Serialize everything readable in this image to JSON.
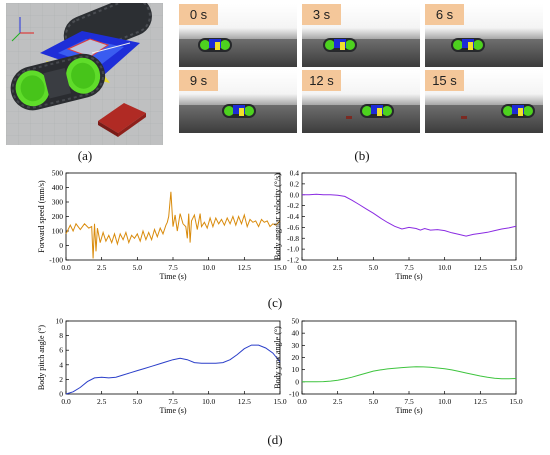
{
  "panel_labels": {
    "a": "(a)",
    "b": "(b)",
    "c": "(c)",
    "d": "(d)"
  },
  "frames": [
    {
      "label": "0 s",
      "robot_pos": 0.22
    },
    {
      "label": "3 s",
      "robot_pos": 0.24
    },
    {
      "label": "6 s",
      "robot_pos": 0.28
    },
    {
      "label": "9 s",
      "robot_pos": 0.42
    },
    {
      "label": "12 s",
      "robot_pos": 0.55
    },
    {
      "label": "15 s",
      "robot_pos": 0.7
    }
  ],
  "chart_data": [
    {
      "type": "line",
      "title": "",
      "xlabel": "Time (s)",
      "ylabel": "Forward speed (mm/s)",
      "xlim": [
        0.0,
        15.0
      ],
      "ylim": [
        -100,
        500
      ],
      "xticks": [
        "0.0",
        "2.5",
        "5.0",
        "7.5",
        "10.0",
        "12.5",
        "15.0"
      ],
      "yticks": [
        "-100",
        "0",
        "100",
        "200",
        "300",
        "400",
        "500"
      ],
      "grid": false,
      "color": "#d98b0c",
      "x": [
        0,
        0.3,
        0.5,
        0.7,
        1,
        1.3,
        1.6,
        1.8,
        1.9,
        2,
        2.1,
        2.2,
        2.4,
        2.6,
        2.8,
        3,
        3.2,
        3.4,
        3.6,
        3.8,
        4,
        4.2,
        4.4,
        4.6,
        4.8,
        5,
        5.2,
        5.4,
        5.6,
        5.8,
        6,
        6.2,
        6.4,
        6.6,
        6.8,
        7,
        7.1,
        7.2,
        7.35,
        7.5,
        7.65,
        7.8,
        8,
        8.2,
        8.4,
        8.5,
        8.6,
        8.7,
        8.8,
        9,
        9.2,
        9.4,
        9.5,
        9.7,
        9.9,
        10.1,
        10.3,
        10.5,
        10.7,
        10.9,
        11.1,
        11.3,
        11.5,
        11.7,
        11.9,
        12.1,
        12.3,
        12.5,
        12.7,
        12.9,
        13.1,
        13.3,
        13.5,
        13.7,
        13.9,
        14.1,
        14.3,
        14.5,
        14.7,
        15
      ],
      "y": [
        80,
        140,
        100,
        150,
        110,
        150,
        120,
        130,
        -90,
        150,
        -40,
        120,
        20,
        90,
        30,
        70,
        20,
        80,
        10,
        80,
        40,
        90,
        20,
        70,
        50,
        80,
        30,
        100,
        40,
        90,
        40,
        110,
        60,
        120,
        80,
        140,
        160,
        200,
        370,
        130,
        210,
        100,
        220,
        150,
        130,
        50,
        220,
        20,
        170,
        210,
        110,
        220,
        130,
        160,
        120,
        190,
        130,
        190,
        150,
        180,
        140,
        190,
        150,
        200,
        140,
        200,
        150,
        210,
        130,
        180,
        160,
        170,
        130,
        180,
        160,
        170,
        130,
        150,
        140,
        170
      ]
    },
    {
      "type": "line",
      "title": "",
      "xlabel": "Time (s)",
      "ylabel": "Body angular velocity (°/s)",
      "xlim": [
        0.0,
        15.0
      ],
      "ylim": [
        -1.2,
        0.4
      ],
      "xticks": [
        "0.0",
        "2.5",
        "5.0",
        "7.5",
        "10.0",
        "12.5",
        "15.0"
      ],
      "yticks": [
        "-1.2",
        "-1.0",
        "-0.8",
        "-0.6",
        "-0.4",
        "-0.2",
        "0.0",
        "0.2",
        "0.4"
      ],
      "grid": false,
      "color": "#8a2be2",
      "x": [
        0,
        0.5,
        1,
        1.5,
        2,
        2.5,
        3,
        3.5,
        4,
        4.5,
        5,
        5.5,
        6,
        6.5,
        7,
        7.5,
        8,
        8.3,
        8.6,
        9,
        9.5,
        10,
        10.5,
        11,
        11.5,
        12,
        12.5,
        13,
        13.5,
        14,
        14.5,
        15
      ],
      "y": [
        0,
        0,
        0.01,
        0,
        0,
        -0.01,
        -0.03,
        -0.1,
        -0.18,
        -0.26,
        -0.34,
        -0.43,
        -0.51,
        -0.58,
        -0.63,
        -0.6,
        -0.62,
        -0.65,
        -0.62,
        -0.65,
        -0.64,
        -0.66,
        -0.7,
        -0.73,
        -0.76,
        -0.73,
        -0.71,
        -0.69,
        -0.66,
        -0.63,
        -0.61,
        -0.58
      ]
    },
    {
      "type": "line",
      "title": "",
      "xlabel": "Time (s)",
      "ylabel": "Body pitch angle (°)",
      "xlim": [
        0.0,
        15.0
      ],
      "ylim": [
        0,
        10
      ],
      "xticks": [
        "0.0",
        "2.5",
        "5.0",
        "7.5",
        "10.0",
        "12.5",
        "15.0"
      ],
      "yticks": [
        "0",
        "2",
        "4",
        "6",
        "8",
        "10"
      ],
      "grid": false,
      "color": "#2b3fc9",
      "x": [
        0,
        0.5,
        1,
        1.5,
        2,
        2.5,
        3,
        3.5,
        4,
        4.5,
        5,
        5.5,
        6,
        6.5,
        7,
        7.5,
        8,
        8.5,
        9,
        9.5,
        10,
        10.5,
        11,
        11.5,
        12,
        12.5,
        13,
        13.5,
        14,
        14.5,
        15
      ],
      "y": [
        0,
        0.3,
        0.9,
        1.7,
        2.2,
        2.3,
        2.2,
        2.3,
        2.6,
        2.9,
        3.2,
        3.5,
        3.8,
        4.1,
        4.4,
        4.7,
        4.9,
        4.7,
        4.3,
        4.2,
        4.2,
        4.2,
        4.3,
        4.7,
        5.4,
        6.2,
        6.7,
        6.7,
        6.3,
        5.6,
        4.4
      ]
    },
    {
      "type": "line",
      "title": "",
      "xlabel": "Time (s)",
      "ylabel": "Body yaw angle (°)",
      "xlim": [
        0.0,
        15.0
      ],
      "ylim": [
        -10,
        50
      ],
      "xticks": [
        "0.0",
        "2.5",
        "5.0",
        "7.5",
        "10.0",
        "12.5",
        "15.0"
      ],
      "yticks": [
        "-10",
        "0",
        "10",
        "20",
        "30",
        "40",
        "50"
      ],
      "grid": false,
      "color": "#3ec43e",
      "x": [
        0,
        0.5,
        1,
        1.5,
        2,
        2.5,
        3,
        3.5,
        4,
        4.5,
        5,
        5.5,
        6,
        6.5,
        7,
        7.5,
        8,
        8.5,
        9,
        9.5,
        10,
        10.5,
        11,
        11.5,
        12,
        12.5,
        13,
        13.5,
        14,
        14.5,
        15
      ],
      "y": [
        0,
        0,
        0,
        0.2,
        0.6,
        1.3,
        2.4,
        3.8,
        5.5,
        7.2,
        8.8,
        9.8,
        10.6,
        11.2,
        11.7,
        12.1,
        12.4,
        12.3,
        12,
        11.4,
        10.7,
        9.8,
        8.6,
        7.3,
        6,
        4.8,
        3.8,
        3,
        2.6,
        2.5,
        2.7
      ]
    }
  ]
}
